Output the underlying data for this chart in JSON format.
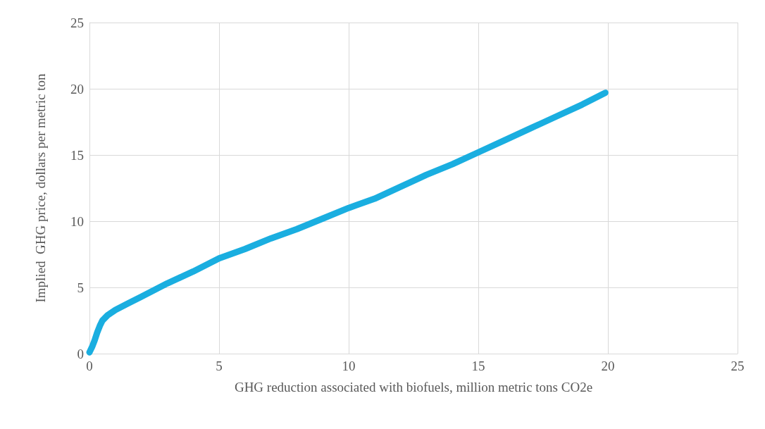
{
  "chart_data": {
    "type": "line",
    "xlabel": "GHG reduction associated with biofuels, million metric tons CO2e",
    "ylabel": "Implied  GHG price, dollars per metric ton",
    "x": [
      0,
      0.1,
      0.2,
      0.3,
      0.4,
      0.5,
      0.7,
      1,
      1.5,
      2,
      3,
      4,
      5,
      6,
      7,
      8,
      9,
      10,
      11,
      12,
      13,
      14,
      15,
      16,
      17,
      18,
      19,
      19.9
    ],
    "series": [
      {
        "color": "#1aaee0",
        "values": [
          0.1,
          0.5,
          1.0,
          1.6,
          2.1,
          2.5,
          2.9,
          3.3,
          3.8,
          4.3,
          5.3,
          6.2,
          7.2,
          7.9,
          8.7,
          9.4,
          10.2,
          11.0,
          11.7,
          12.6,
          13.5,
          14.3,
          15.2,
          16.1,
          17.0,
          17.9,
          18.8,
          19.7
        ]
      }
    ],
    "xlim": [
      0,
      25
    ],
    "xticks": [
      0,
      5,
      10,
      15,
      20,
      25
    ],
    "ylim": [
      0,
      25
    ],
    "yticks": [
      0,
      5,
      10,
      15,
      20,
      25
    ],
    "grid": true,
    "marker": "none",
    "line_style": "solid"
  }
}
